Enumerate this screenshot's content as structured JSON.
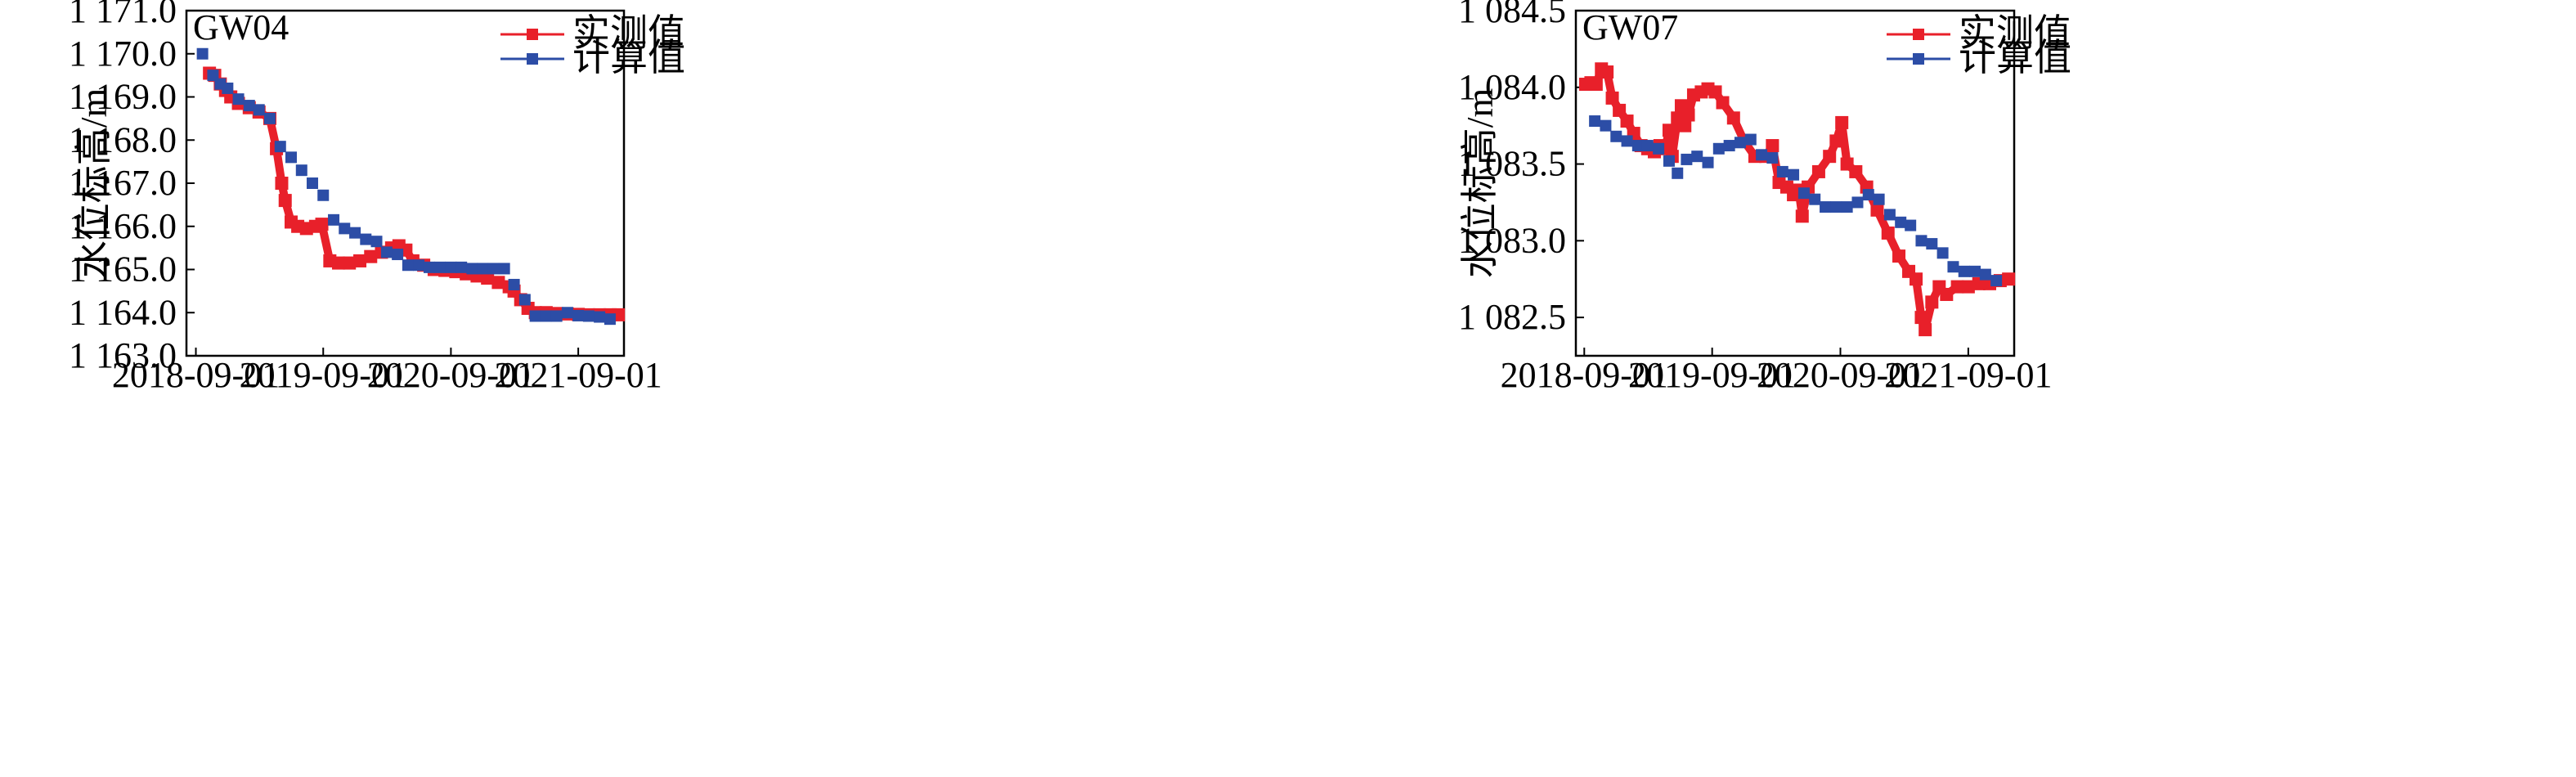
{
  "chart_data": [
    {
      "type": "scatter",
      "title": "GW04",
      "xlabel": "",
      "ylabel": "水位标高/m",
      "x_ticks": [
        "2018-09-01",
        "2019-09-01",
        "2020-09-01",
        "2021-09-01"
      ],
      "xlim": [
        "2018-08-05",
        "2022-01-10"
      ],
      "y_ticks": [
        "1 163.0",
        "1 164.0",
        "1 165.0",
        "1 166.0",
        "1 167.0",
        "1 168.0",
        "1 169.0",
        "1 170.0",
        "1 171.0"
      ],
      "ylim": [
        1163.0,
        1171.0
      ],
      "grid": false,
      "legend_position": "top-right",
      "colors": {
        "measured": "#e8202a",
        "calculated": "#2c4da6"
      },
      "series": [
        {
          "name": "实测值",
          "style": "line-square",
          "points": [
            [
              "2018-10-10",
              1169.55
            ],
            [
              "2018-10-25",
              1169.5
            ],
            [
              "2018-11-10",
              1169.3
            ],
            [
              "2018-11-25",
              1169.15
            ],
            [
              "2018-12-10",
              1169.0
            ],
            [
              "2019-01-01",
              1168.85
            ],
            [
              "2019-02-01",
              1168.75
            ],
            [
              "2019-03-01",
              1168.65
            ],
            [
              "2019-04-01",
              1168.5
            ],
            [
              "2019-04-20",
              1167.8
            ],
            [
              "2019-05-05",
              1167.0
            ],
            [
              "2019-05-15",
              1166.6
            ],
            [
              "2019-06-01",
              1166.1
            ],
            [
              "2019-06-20",
              1166.0
            ],
            [
              "2019-07-15",
              1165.95
            ],
            [
              "2019-08-10",
              1166.0
            ],
            [
              "2019-08-28",
              1166.05
            ],
            [
              "2019-09-20",
              1165.2
            ],
            [
              "2019-10-15",
              1165.15
            ],
            [
              "2019-11-15",
              1165.15
            ],
            [
              "2019-12-15",
              1165.2
            ],
            [
              "2020-01-15",
              1165.3
            ],
            [
              "2020-02-15",
              1165.4
            ],
            [
              "2020-03-15",
              1165.5
            ],
            [
              "2020-04-05",
              1165.55
            ],
            [
              "2020-04-25",
              1165.45
            ],
            [
              "2020-05-15",
              1165.2
            ],
            [
              "2020-06-15",
              1165.1
            ],
            [
              "2020-07-15",
              1165.0
            ],
            [
              "2020-08-15",
              1164.98
            ],
            [
              "2020-09-15",
              1164.95
            ],
            [
              "2020-10-15",
              1164.9
            ],
            [
              "2020-11-15",
              1164.85
            ],
            [
              "2020-12-15",
              1164.8
            ],
            [
              "2021-01-15",
              1164.7
            ],
            [
              "2021-02-15",
              1164.6
            ],
            [
              "2021-03-01",
              1164.5
            ],
            [
              "2021-03-20",
              1164.3
            ],
            [
              "2021-04-10",
              1164.1
            ],
            [
              "2021-05-01",
              1164.0
            ],
            [
              "2021-06-01",
              1164.0
            ],
            [
              "2021-07-01",
              1163.98
            ],
            [
              "2021-08-01",
              1163.97
            ],
            [
              "2021-09-01",
              1163.96
            ],
            [
              "2021-10-01",
              1163.95
            ],
            [
              "2021-11-01",
              1163.95
            ],
            [
              "2021-12-01",
              1163.95
            ],
            [
              "2021-12-25",
              1163.95
            ]
          ]
        },
        {
          "name": "计算值",
          "style": "marker-square",
          "points": [
            [
              "2018-09-20",
              1170.0
            ],
            [
              "2018-10-20",
              1169.5
            ],
            [
              "2018-11-10",
              1169.3
            ],
            [
              "2018-12-01",
              1169.2
            ],
            [
              "2019-01-01",
              1168.95
            ],
            [
              "2019-02-01",
              1168.8
            ],
            [
              "2019-03-01",
              1168.7
            ],
            [
              "2019-04-01",
              1168.5
            ],
            [
              "2019-05-01",
              1167.85
            ],
            [
              "2019-06-01",
              1167.6
            ],
            [
              "2019-07-01",
              1167.3
            ],
            [
              "2019-08-01",
              1167.0
            ],
            [
              "2019-09-01",
              1166.72
            ],
            [
              "2019-10-01",
              1166.15
            ],
            [
              "2019-11-01",
              1165.95
            ],
            [
              "2019-12-01",
              1165.85
            ],
            [
              "2020-01-01",
              1165.7
            ],
            [
              "2020-02-01",
              1165.65
            ],
            [
              "2020-03-01",
              1165.4
            ],
            [
              "2020-04-01",
              1165.35
            ],
            [
              "2020-05-01",
              1165.1
            ],
            [
              "2020-06-01",
              1165.1
            ],
            [
              "2020-07-01",
              1165.05
            ],
            [
              "2020-08-01",
              1165.05
            ],
            [
              "2020-09-01",
              1165.05
            ],
            [
              "2020-10-01",
              1165.05
            ],
            [
              "2020-11-01",
              1165.02
            ],
            [
              "2020-12-01",
              1165.02
            ],
            [
              "2021-01-01",
              1165.02
            ],
            [
              "2021-02-01",
              1165.02
            ],
            [
              "2021-03-01",
              1164.65
            ],
            [
              "2021-04-01",
              1164.3
            ],
            [
              "2021-05-01",
              1163.92
            ],
            [
              "2021-06-01",
              1163.92
            ],
            [
              "2021-07-01",
              1163.92
            ],
            [
              "2021-08-01",
              1164.0
            ],
            [
              "2021-09-01",
              1163.93
            ],
            [
              "2021-10-01",
              1163.92
            ],
            [
              "2021-11-01",
              1163.9
            ],
            [
              "2021-12-01",
              1163.85
            ]
          ]
        }
      ]
    },
    {
      "type": "scatter",
      "title": "GW07",
      "xlabel": "",
      "ylabel": "水位标高/m",
      "x_ticks": [
        "2018-09-01",
        "2019-09-01",
        "2020-09-01",
        "2021-09-01"
      ],
      "xlim": [
        "2018-08-08",
        "2022-01-10"
      ],
      "y_ticks": [
        "1 082.5",
        "1 083.0",
        "1 083.5",
        "1 084.0",
        "1 084.5"
      ],
      "ylim": [
        1082.25,
        1084.5
      ],
      "grid": false,
      "legend_position": "top-right",
      "colors": {
        "measured": "#e8202a",
        "calculated": "#2c4da6"
      },
      "series": [
        {
          "name": "实测值",
          "style": "line-square",
          "points": [
            [
              "2018-09-05",
              1084.02
            ],
            [
              "2018-09-20",
              1084.03
            ],
            [
              "2018-10-05",
              1084.02
            ],
            [
              "2018-10-20",
              1084.12
            ],
            [
              "2018-11-05",
              1084.1
            ],
            [
              "2018-11-20",
              1083.93
            ],
            [
              "2018-12-10",
              1083.85
            ],
            [
              "2019-01-01",
              1083.78
            ],
            [
              "2019-01-20",
              1083.7
            ],
            [
              "2019-02-10",
              1083.62
            ],
            [
              "2019-03-01",
              1083.6
            ],
            [
              "2019-03-20",
              1083.58
            ],
            [
              "2019-04-05",
              1083.62
            ],
            [
              "2019-04-20",
              1083.6
            ],
            [
              "2019-05-01",
              1083.72
            ],
            [
              "2019-05-10",
              1083.55
            ],
            [
              "2019-05-25",
              1083.8
            ],
            [
              "2019-06-05",
              1083.88
            ],
            [
              "2019-06-15",
              1083.75
            ],
            [
              "2019-06-25",
              1083.82
            ],
            [
              "2019-07-10",
              1083.95
            ],
            [
              "2019-08-01",
              1083.97
            ],
            [
              "2019-08-20",
              1083.99
            ],
            [
              "2019-09-10",
              1083.97
            ],
            [
              "2019-10-01",
              1083.9
            ],
            [
              "2019-11-01",
              1083.8
            ],
            [
              "2019-12-01",
              1083.65
            ],
            [
              "2020-01-01",
              1083.55
            ],
            [
              "2020-02-01",
              1083.55
            ],
            [
              "2020-02-20",
              1083.62
            ],
            [
              "2020-03-10",
              1083.38
            ],
            [
              "2020-04-01",
              1083.35
            ],
            [
              "2020-04-20",
              1083.3
            ],
            [
              "2020-05-05",
              1083.33
            ],
            [
              "2020-05-15",
              1083.16
            ],
            [
              "2020-06-01",
              1083.35
            ],
            [
              "2020-07-01",
              1083.45
            ],
            [
              "2020-08-01",
              1083.55
            ],
            [
              "2020-08-20",
              1083.65
            ],
            [
              "2020-09-05",
              1083.77
            ],
            [
              "2020-09-20",
              1083.5
            ],
            [
              "2020-10-15",
              1083.45
            ],
            [
              "2020-11-15",
              1083.35
            ],
            [
              "2020-12-15",
              1083.2
            ],
            [
              "2021-01-15",
              1083.05
            ],
            [
              "2021-02-15",
              1082.9
            ],
            [
              "2021-03-15",
              1082.8
            ],
            [
              "2021-04-05",
              1082.75
            ],
            [
              "2021-04-20",
              1082.5
            ],
            [
              "2021-05-01",
              1082.42
            ],
            [
              "2021-05-20",
              1082.6
            ],
            [
              "2021-06-10",
              1082.7
            ],
            [
              "2021-07-01",
              1082.65
            ],
            [
              "2021-08-01",
              1082.7
            ],
            [
              "2021-09-01",
              1082.7
            ],
            [
              "2021-10-01",
              1082.72
            ],
            [
              "2021-11-01",
              1082.72
            ],
            [
              "2021-12-01",
              1082.74
            ],
            [
              "2021-12-25",
              1082.75
            ]
          ]
        },
        {
          "name": "计算值",
          "style": "marker-square",
          "points": [
            [
              "2018-10-01",
              1083.78
            ],
            [
              "2018-11-01",
              1083.75
            ],
            [
              "2018-12-01",
              1083.68
            ],
            [
              "2019-01-01",
              1083.65
            ],
            [
              "2019-02-01",
              1083.62
            ],
            [
              "2019-03-01",
              1083.62
            ],
            [
              "2019-04-01",
              1083.6
            ],
            [
              "2019-05-01",
              1083.52
            ],
            [
              "2019-05-25",
              1083.44
            ],
            [
              "2019-06-20",
              1083.53
            ],
            [
              "2019-07-20",
              1083.55
            ],
            [
              "2019-08-20",
              1083.51
            ],
            [
              "2019-09-20",
              1083.6
            ],
            [
              "2019-10-20",
              1083.62
            ],
            [
              "2019-11-20",
              1083.64
            ],
            [
              "2019-12-20",
              1083.66
            ],
            [
              "2020-01-20",
              1083.56
            ],
            [
              "2020-02-20",
              1083.54
            ],
            [
              "2020-03-20",
              1083.45
            ],
            [
              "2020-04-20",
              1083.43
            ],
            [
              "2020-05-20",
              1083.31
            ],
            [
              "2020-06-20",
              1083.27
            ],
            [
              "2020-07-20",
              1083.22
            ],
            [
              "2020-08-20",
              1083.22
            ],
            [
              "2020-09-20",
              1083.22
            ],
            [
              "2020-10-20",
              1083.25
            ],
            [
              "2020-11-20",
              1083.3
            ],
            [
              "2020-12-20",
              1083.27
            ],
            [
              "2021-01-20",
              1083.17
            ],
            [
              "2021-02-20",
              1083.12
            ],
            [
              "2021-03-20",
              1083.1
            ],
            [
              "2021-04-20",
              1083.0
            ],
            [
              "2021-05-20",
              1082.98
            ],
            [
              "2021-06-20",
              1082.92
            ],
            [
              "2021-07-20",
              1082.83
            ],
            [
              "2021-08-20",
              1082.8
            ],
            [
              "2021-09-20",
              1082.8
            ],
            [
              "2021-10-20",
              1082.78
            ],
            [
              "2021-11-20",
              1082.74
            ]
          ]
        }
      ]
    }
  ]
}
